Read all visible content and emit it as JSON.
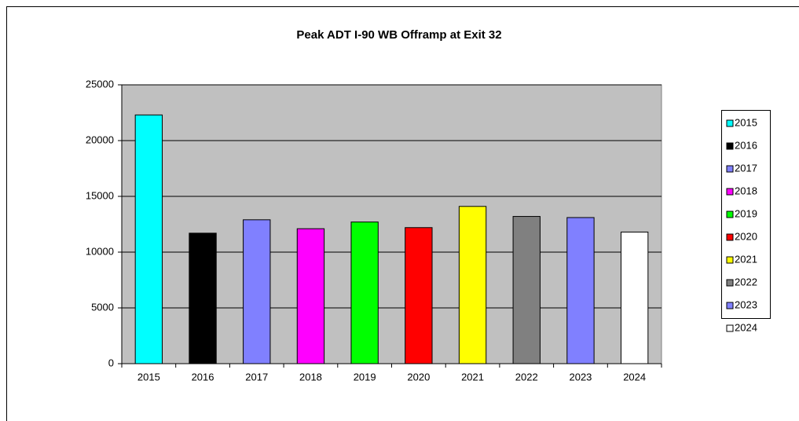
{
  "chart_data": {
    "type": "bar",
    "title": "Peak ADT I-90 WB Offramp at Exit 32",
    "categories": [
      "2015",
      "2016",
      "2017",
      "2018",
      "2019",
      "2020",
      "2021",
      "2022",
      "2023",
      "2024"
    ],
    "values": [
      22300,
      11700,
      12900,
      12100,
      12700,
      12200,
      14100,
      13200,
      13100,
      11800
    ],
    "colors": [
      "#00ffff",
      "#000000",
      "#8080ff",
      "#ff00ff",
      "#00ff00",
      "#ff0000",
      "#ffff00",
      "#808080",
      "#8080ff",
      "#ffffff"
    ],
    "ylim": [
      0,
      25000
    ],
    "yticks": [
      0,
      5000,
      10000,
      15000,
      20000,
      25000
    ],
    "grid": true,
    "legend": "right"
  }
}
